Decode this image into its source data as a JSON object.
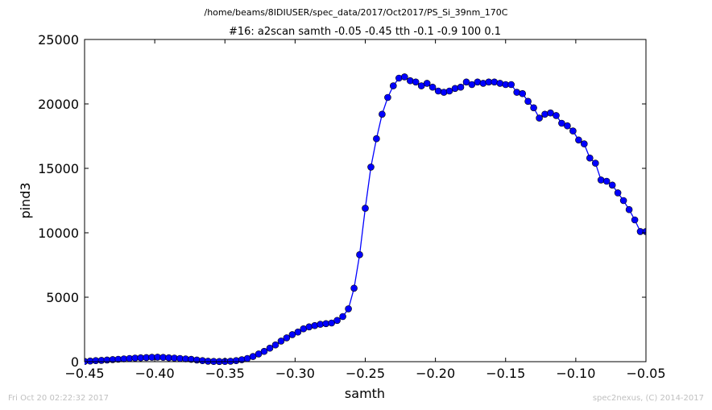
{
  "footer": {
    "timestamp": "Fri Oct 20 02:22:32 2017",
    "credit": "spec2nexus, (C) 2014-2017"
  },
  "chart_data": {
    "type": "line",
    "title": "#16: a2scan  samth -0.05 -0.45  tth -0.1 -0.9  100 0.1",
    "subtitle": "/home/beams/8IDIUSER/spec_data/2017/Oct2017/PS_Si_39nm_170C",
    "xlabel": "samth",
    "ylabel": "pind3",
    "xlim": [
      -0.45,
      -0.05
    ],
    "ylim": [
      0,
      25000
    ],
    "x_ticks": [
      -0.45,
      -0.4,
      -0.35,
      -0.3,
      -0.25,
      -0.2,
      -0.15,
      -0.1,
      -0.05
    ],
    "x_tick_labels": [
      "−0.45",
      "−0.40",
      "−0.35",
      "−0.30",
      "−0.25",
      "−0.20",
      "−0.15",
      "−0.10",
      "−0.05"
    ],
    "y_ticks": [
      0,
      5000,
      10000,
      15000,
      20000,
      25000
    ],
    "y_tick_labels": [
      "0",
      "5000",
      "10000",
      "15000",
      "20000",
      "25000"
    ],
    "grid": false,
    "line_color": "#0000ff",
    "marker": "circle",
    "series": [
      {
        "x": [
          -0.45,
          -0.446,
          -0.442,
          -0.438,
          -0.434,
          -0.43,
          -0.426,
          -0.422,
          -0.418,
          -0.414,
          -0.41,
          -0.406,
          -0.402,
          -0.398,
          -0.394,
          -0.39,
          -0.386,
          -0.382,
          -0.378,
          -0.374,
          -0.37,
          -0.366,
          -0.362,
          -0.358,
          -0.354,
          -0.35,
          -0.346,
          -0.342,
          -0.338,
          -0.334,
          -0.33,
          -0.326,
          -0.322,
          -0.318,
          -0.314,
          -0.31,
          -0.306,
          -0.302,
          -0.298,
          -0.294,
          -0.29,
          -0.286,
          -0.282,
          -0.278,
          -0.274,
          -0.27,
          -0.266,
          -0.262,
          -0.258,
          -0.254,
          -0.25,
          -0.246,
          -0.242,
          -0.238,
          -0.234,
          -0.23,
          -0.226,
          -0.222,
          -0.218,
          -0.214,
          -0.21,
          -0.206,
          -0.202,
          -0.198,
          -0.194,
          -0.19,
          -0.186,
          -0.182,
          -0.178,
          -0.174,
          -0.17,
          -0.166,
          -0.162,
          -0.158,
          -0.154,
          -0.15,
          -0.146,
          -0.142,
          -0.138,
          -0.134,
          -0.13,
          -0.126,
          -0.122,
          -0.118,
          -0.114,
          -0.11,
          -0.106,
          -0.102,
          -0.098,
          -0.094,
          -0.09,
          -0.086,
          -0.082,
          -0.078,
          -0.074,
          -0.07,
          -0.066,
          -0.062,
          -0.058,
          -0.054,
          -0.05
        ],
        "values": [
          20,
          50,
          80,
          100,
          130,
          160,
          190,
          220,
          250,
          280,
          300,
          320,
          340,
          350,
          330,
          300,
          280,
          250,
          220,
          180,
          130,
          80,
          40,
          20,
          10,
          20,
          40,
          80,
          150,
          250,
          400,
          600,
          800,
          1050,
          1300,
          1600,
          1850,
          2100,
          2300,
          2550,
          2700,
          2800,
          2900,
          2950,
          3000,
          3200,
          3500,
          4100,
          5700,
          8300,
          11900,
          15100,
          17300,
          19200,
          20500,
          21400,
          22000,
          22100,
          21800,
          21700,
          21400,
          21600,
          21300,
          21000,
          20900,
          21000,
          21200,
          21300,
          21700,
          21500,
          21700,
          21600,
          21700,
          21700,
          21600,
          21500,
          21500,
          20900,
          20800,
          20200,
          19700,
          18900,
          19200,
          19300,
          19100,
          18500,
          18300,
          17900,
          17200,
          16900,
          15800,
          15400,
          14100,
          14000,
          13700,
          13100,
          12500,
          11800,
          11000,
          10100,
          10100
        ]
      }
    ]
  }
}
